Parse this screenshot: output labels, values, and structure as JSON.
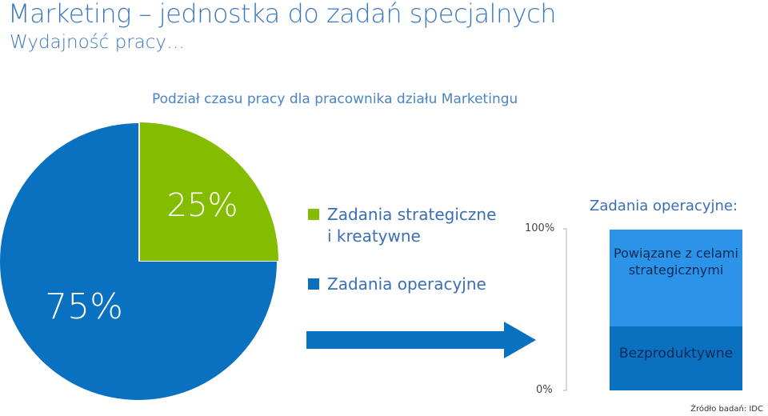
{
  "header": {
    "title": "Marketing – jednostka do zadań specjalnych",
    "subtitle": "Wydajność pracy…"
  },
  "colors": {
    "blue": "#0a70c0",
    "green": "#84bd00",
    "light_blue": "#2b93e8",
    "arrow": "#0a70c0"
  },
  "chart_data": [
    {
      "type": "pie",
      "title": "Podział czasu pracy dla pracownika działu Marketingu",
      "slices": [
        {
          "name": "Zadania strategiczne i kreatywne",
          "value": 25,
          "label": "25%"
        },
        {
          "name": "Zadania operacyjne",
          "value": 75,
          "label": "75%"
        }
      ],
      "legend_position": "right"
    },
    {
      "type": "bar",
      "stacked": true,
      "title": "Zadania operacyjne:",
      "ylim": [
        0,
        100
      ],
      "tick_labels": [
        "100%",
        "0%"
      ],
      "series": [
        {
          "name": "Bezproduktywne",
          "values": [
            40
          ]
        },
        {
          "name": "Powiązane z celami strategicznymi",
          "values": [
            60
          ]
        }
      ]
    }
  ],
  "source": "Źródło badań: IDC"
}
